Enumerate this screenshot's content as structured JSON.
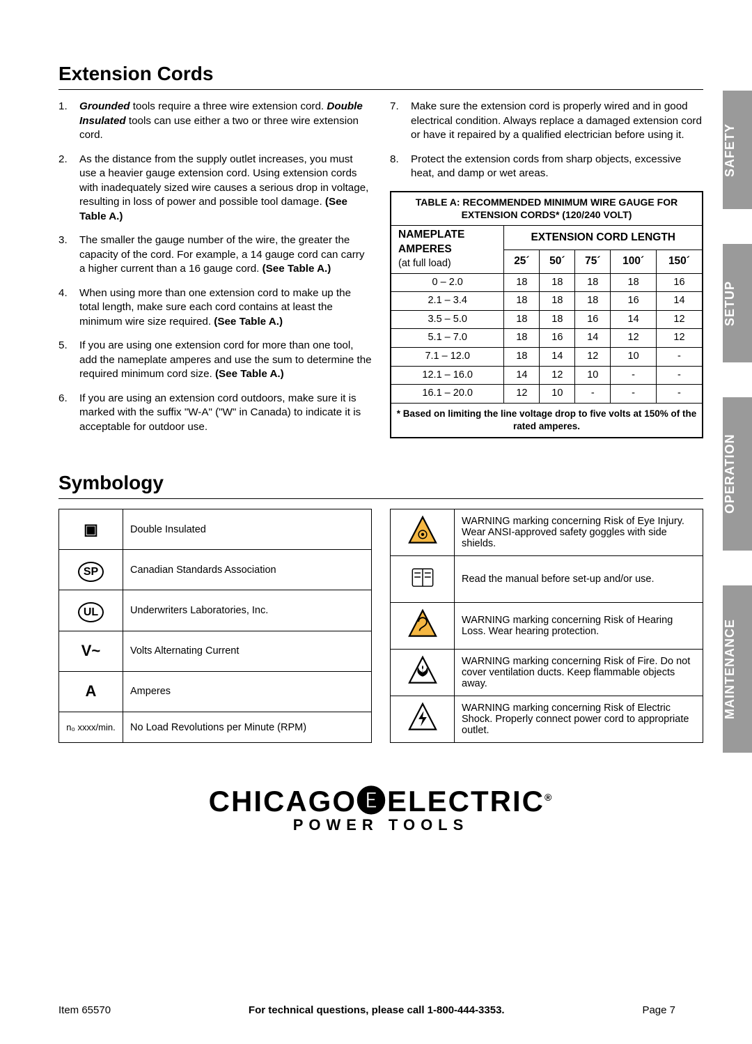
{
  "headings": {
    "ext": "Extension Cords",
    "sym": "Symbology"
  },
  "ext_left": [
    "<b><i>Grounded</i></b> tools require a three wire extension cord. <b><i>Double Insulated</i></b> tools can use either a two or three wire extension cord.",
    "As the distance from the supply outlet increases, you must use a heavier gauge extension cord. Using extension cords with inadequately sized wire causes a serious drop in voltage, resulting in loss of power and possible tool damage.  <b>(See Table A.)</b>",
    "The smaller the gauge number of the wire, the greater the capacity of the cord.  For example, a 14 gauge cord can carry a higher current than a 16 gauge cord.  <b>(See Table A.)</b>",
    "When using more than one extension cord to make up the total length, make sure each cord contains at least the minimum wire size required.  <b>(See Table A.)</b>",
    "If you are using one extension cord for more than one tool, add the nameplate amperes and use the sum to determine the required minimum cord size.  <b>(See Table A.)</b>",
    "If you are using an extension cord outdoors, make sure it is marked with the suffix \"W-A\" (\"W\" in Canada) to indicate it is acceptable for outdoor use."
  ],
  "ext_right": [
    "Make sure the extension cord is properly wired and in good electrical condition.  Always replace a damaged extension cord or have it repaired by a qualified electrician before using it.",
    "Protect the extension cords from sharp objects, excessive heat, and damp or wet areas."
  ],
  "tableA": {
    "title": "TABLE A:  RECOMMENDED MINIMUM WIRE GAUGE FOR EXTENSION CORDS* (120/240 VOLT)",
    "amp_label1": "NAMEPLATE",
    "amp_label2": "AMPERES",
    "amp_label3": "(at full load)",
    "len_label": "EXTENSION CORD LENGTH",
    "lens": [
      "25´",
      "50´",
      "75´",
      "100´",
      "150´"
    ],
    "rows": [
      [
        "0 – 2.0",
        "18",
        "18",
        "18",
        "18",
        "16"
      ],
      [
        "2.1 – 3.4",
        "18",
        "18",
        "18",
        "16",
        "14"
      ],
      [
        "3.5 – 5.0",
        "18",
        "18",
        "16",
        "14",
        "12"
      ],
      [
        "5.1 – 7.0",
        "18",
        "16",
        "14",
        "12",
        "12"
      ],
      [
        "7.1 – 12.0",
        "18",
        "14",
        "12",
        "10",
        "-"
      ],
      [
        "12.1 – 16.0",
        "14",
        "12",
        "10",
        "-",
        "-"
      ],
      [
        "16.1 – 20.0",
        "12",
        "10",
        "-",
        "-",
        "-"
      ]
    ],
    "footnote": "* Based on limiting the line voltage drop to five volts at 150% of the rated amperes."
  },
  "sym_left": [
    {
      "icon": "double-insulated",
      "glyph": "▣",
      "text": "Double Insulated"
    },
    {
      "icon": "csa",
      "glyph": "SP",
      "text": "Canadian Standards Association"
    },
    {
      "icon": "ul",
      "glyph": "UL",
      "text": "Underwriters Laboratories, Inc."
    },
    {
      "icon": "vac",
      "glyph": "V~",
      "text": "Volts Alternating Current"
    },
    {
      "icon": "amps",
      "glyph": "A",
      "text": "Amperes"
    },
    {
      "icon": "rpm",
      "glyph": "n₀ xxxx/min.",
      "text": "No Load Revolutions per Minute (RPM)"
    }
  ],
  "sym_right": [
    {
      "icon": "eye-warning",
      "text": "WARNING marking concerning Risk of Eye Injury.  Wear ANSI-approved safety goggles with side shields."
    },
    {
      "icon": "read-manual",
      "text": "Read the manual before set-up and/or use."
    },
    {
      "icon": "hearing-warning",
      "text": "WARNING marking concerning Risk of Hearing Loss. Wear hearing protection."
    },
    {
      "icon": "fire-warning",
      "text": "WARNING marking concerning Risk of Fire. Do not cover ventilation ducts. Keep flammable objects away."
    },
    {
      "icon": "shock-warning",
      "text": "WARNING marking concerning Risk of Electric Shock. Properly connect power cord to appropriate outlet."
    }
  ],
  "brand": {
    "name": "CHICAGO🅔ELECTRIC",
    "sub": "POWER TOOLS",
    "reg": "®"
  },
  "tabs": {
    "safety": "SAFETY",
    "setup": "SETUP",
    "op": "OPERATION",
    "maint": "MAINTENANCE"
  },
  "footer": {
    "item": "Item 65570",
    "mid": "For technical questions, please call 1-800-444-3353.",
    "page": "Page 7"
  }
}
